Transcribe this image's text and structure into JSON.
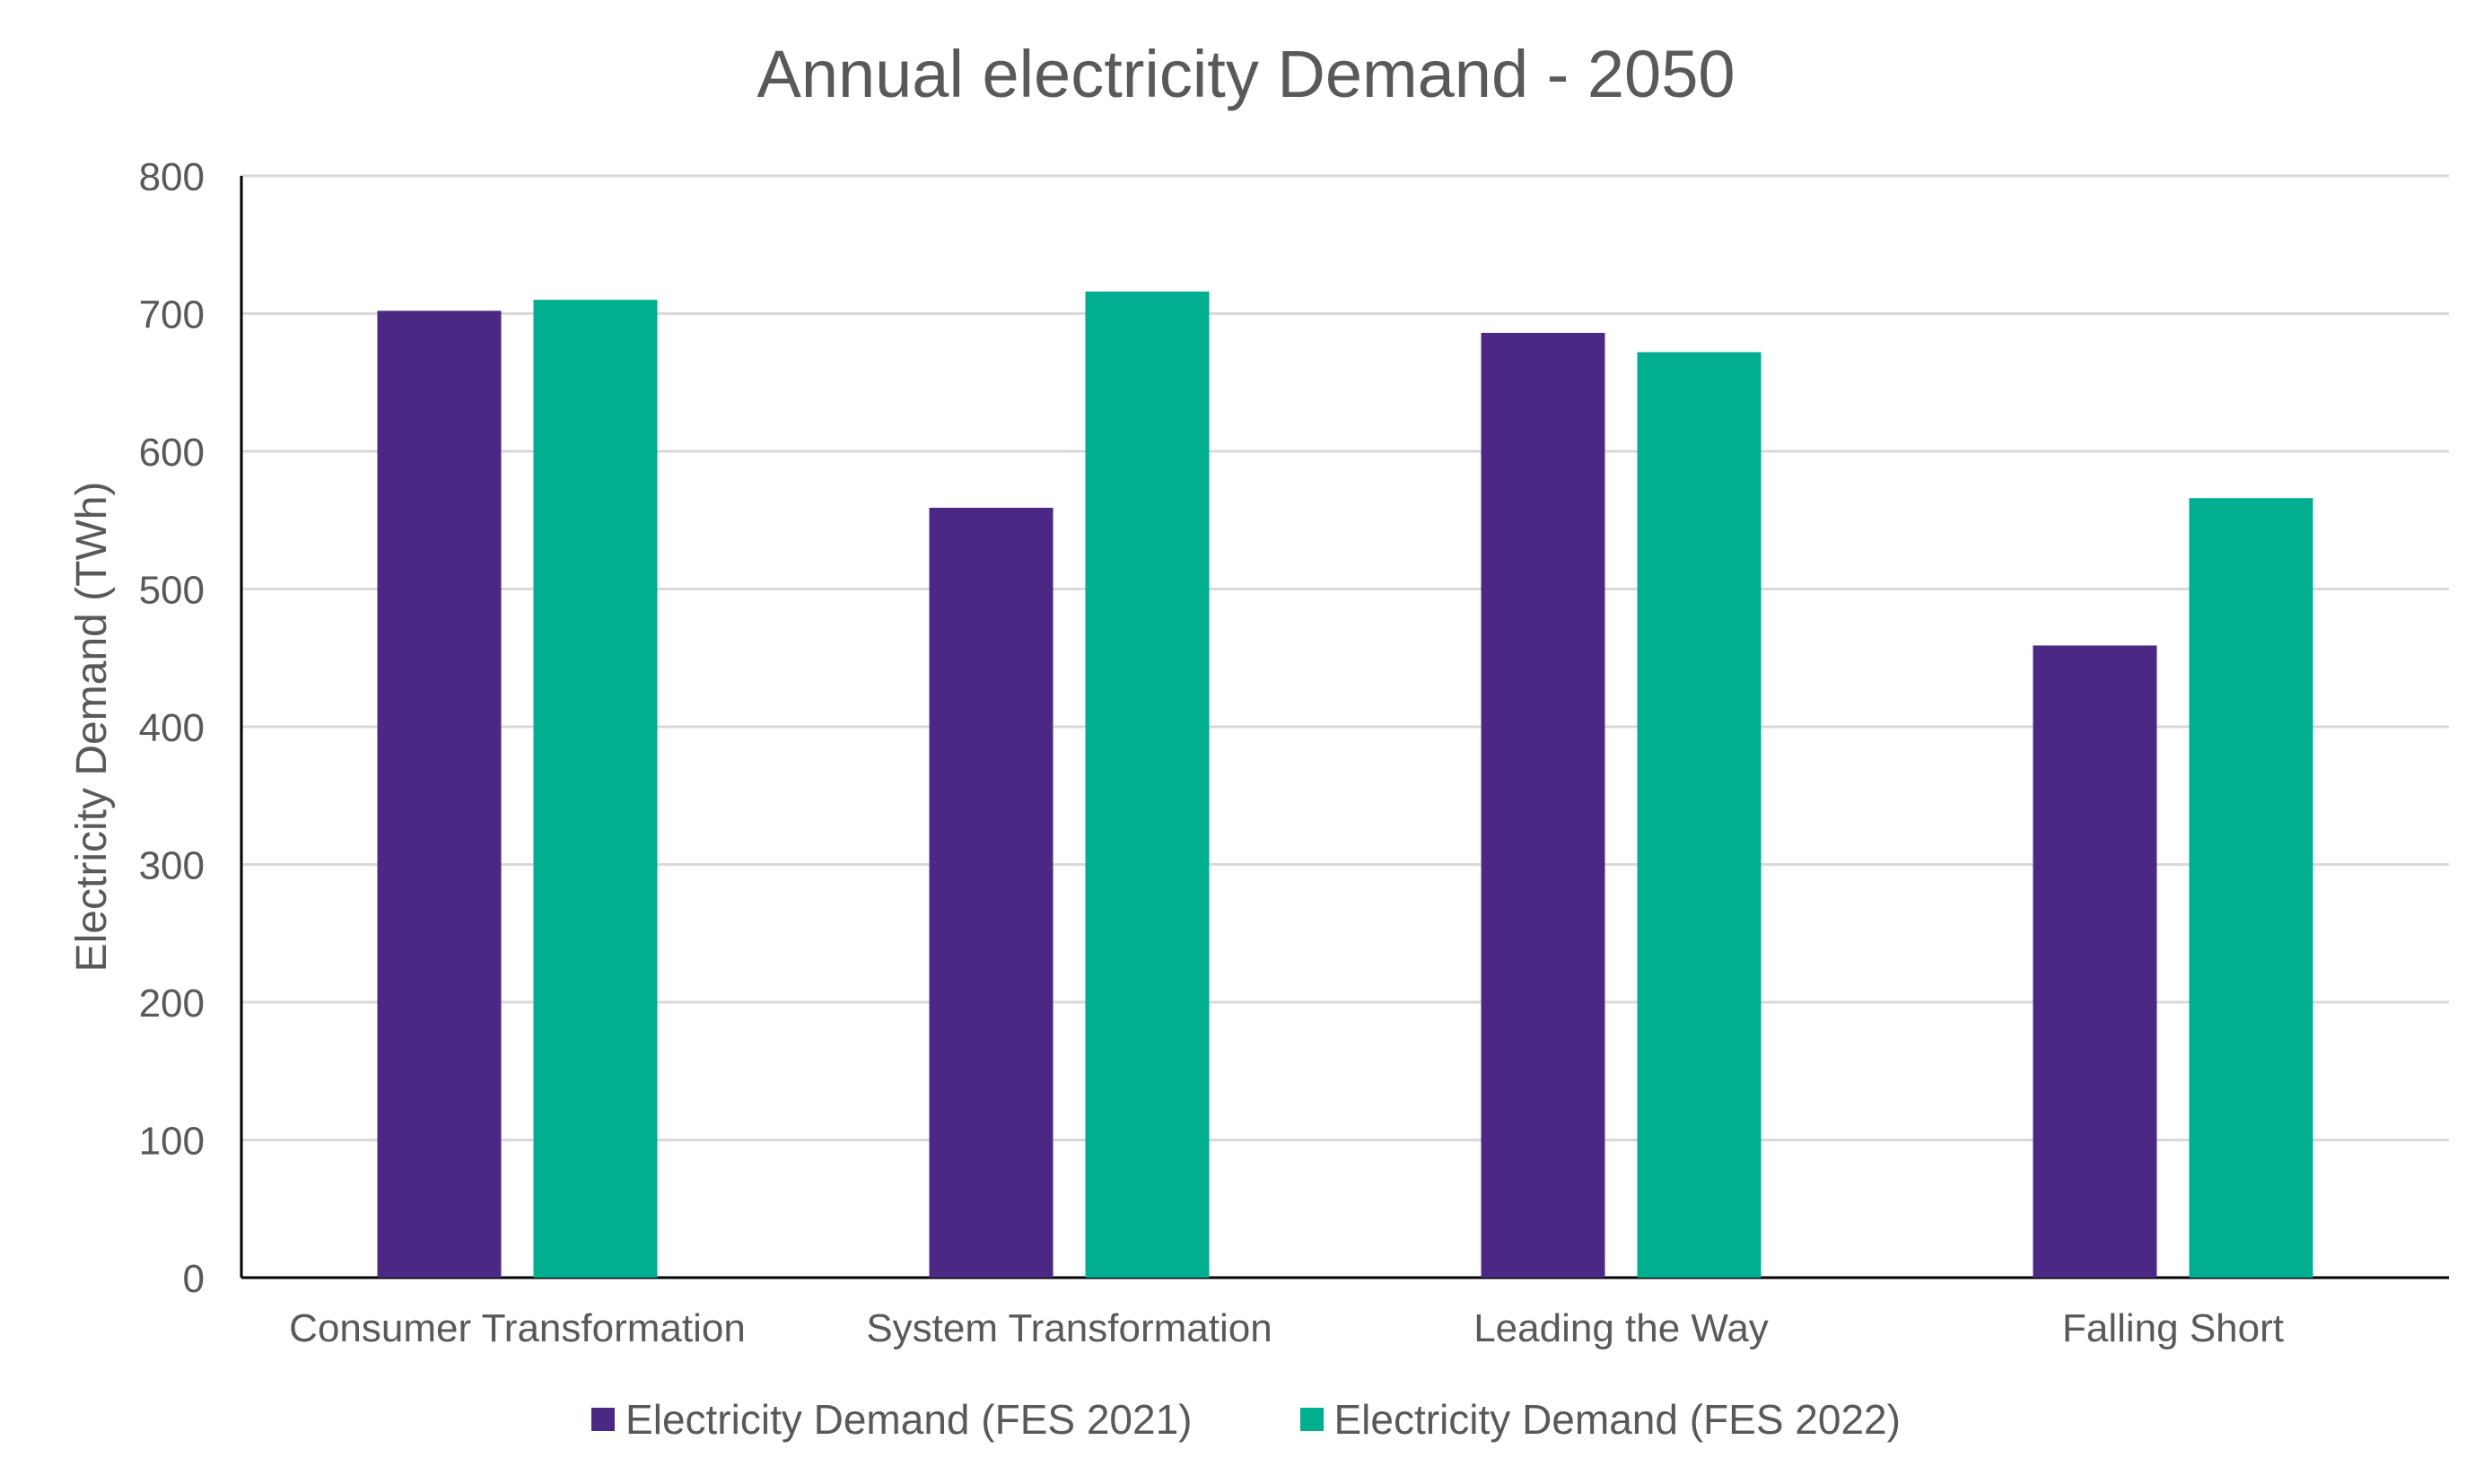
{
  "chart_data": {
    "type": "bar",
    "title": "Annual electricity Demand - 2050",
    "xlabel": "",
    "ylabel": "Electricity Demand (TWh)",
    "ylim": [
      0,
      800
    ],
    "yticks": [
      0,
      100,
      200,
      300,
      400,
      500,
      600,
      700,
      800
    ],
    "grid": true,
    "legend_position": "bottom",
    "categories": [
      "Consumer Transformation",
      "System Transformation",
      "Leading the Way",
      "Falling Short"
    ],
    "series": [
      {
        "name": "Electricity Demand (FES 2021)",
        "color": "#4B2884",
        "values": [
          702,
          559,
          686,
          459
        ]
      },
      {
        "name": "Electricity Demand (FES 2022)",
        "color": "#00AF8F",
        "values": [
          710,
          716,
          672,
          566
        ]
      }
    ]
  }
}
